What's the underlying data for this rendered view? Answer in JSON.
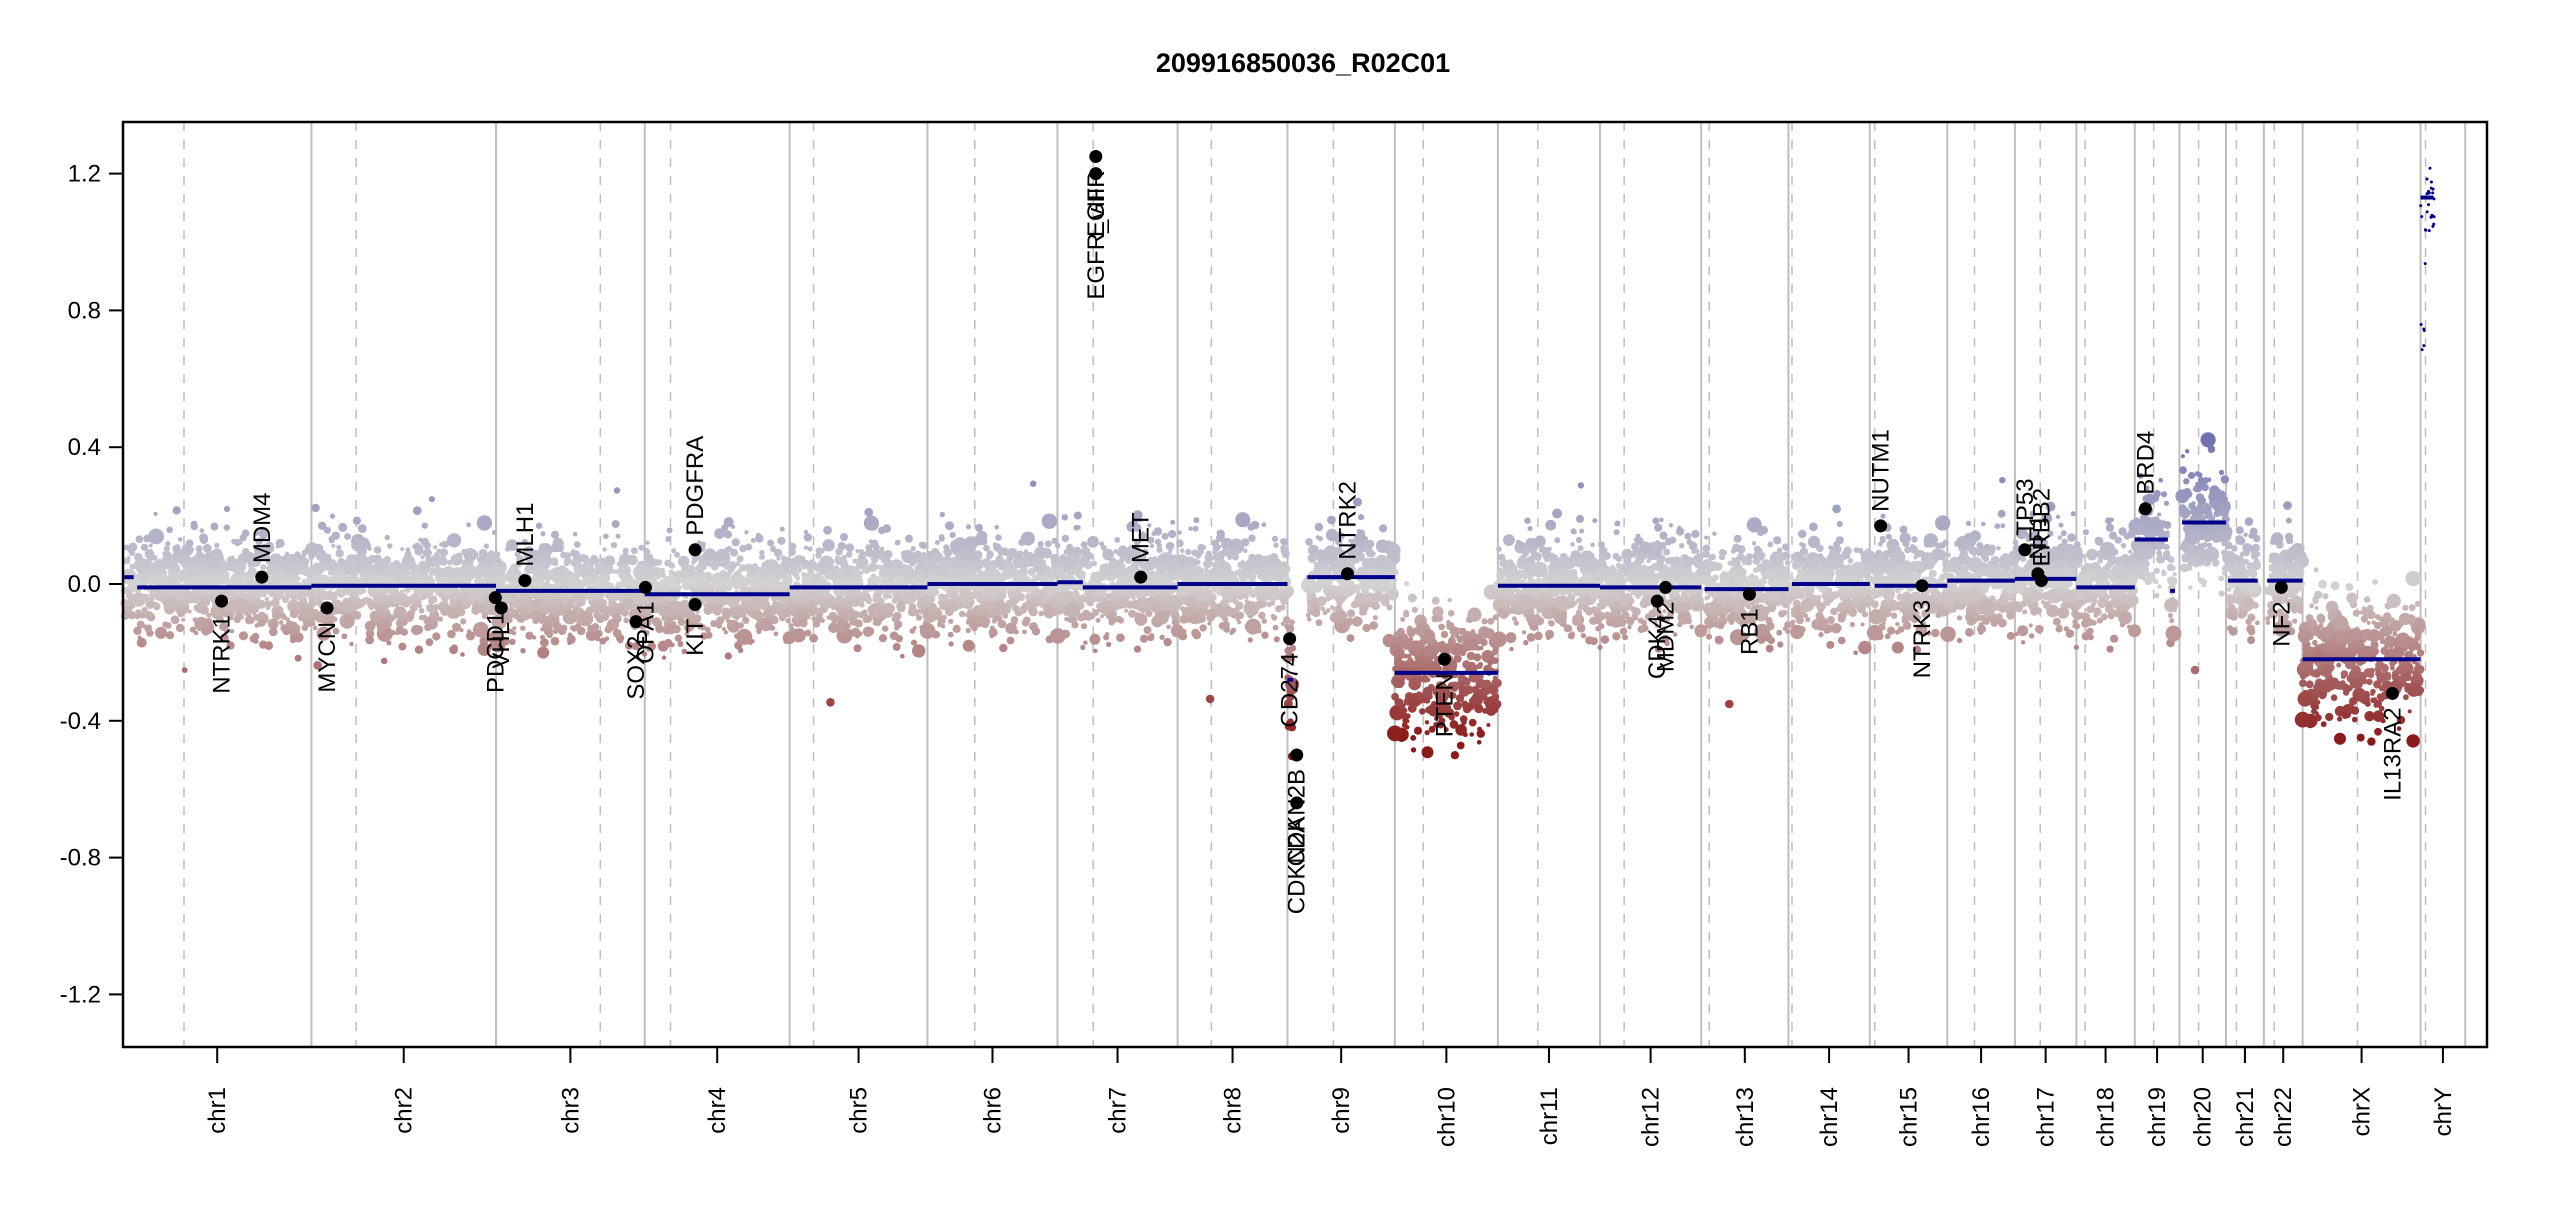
{
  "chart_data": {
    "type": "scatter",
    "title": "209916850036_R02C01",
    "xlabel": "",
    "ylabel": "",
    "ylim": [
      -1.36,
      1.36
    ],
    "yticks": [
      1.2,
      0.8,
      0.4,
      0.0,
      -0.4,
      -0.8,
      -1.2
    ],
    "ytick_labels": [
      "1.2",
      "0.8",
      "0.4",
      "0.0",
      "-0.4",
      "-0.8",
      "-1.2"
    ],
    "grid": false,
    "legend": "none",
    "x_units": "relative genome position (0-1)",
    "chromosomes": [
      {
        "name": "chr1",
        "start": 0.0,
        "end": 0.0797,
        "centromere": 0.0258
      },
      {
        "name": "chr2",
        "start": 0.0797,
        "end": 0.1578,
        "centromere": 0.0986
      },
      {
        "name": "chr3",
        "start": 0.1578,
        "end": 0.2207,
        "centromere": 0.2019
      },
      {
        "name": "chr4",
        "start": 0.2207,
        "end": 0.282,
        "centromere": 0.2316
      },
      {
        "name": "chr5",
        "start": 0.282,
        "end": 0.3403,
        "centromere": 0.2921
      },
      {
        "name": "chr6",
        "start": 0.3403,
        "end": 0.3953,
        "centromere": 0.3603
      },
      {
        "name": "chr7",
        "start": 0.3953,
        "end": 0.4461,
        "centromere": 0.4104
      },
      {
        "name": "chr8",
        "start": 0.4461,
        "end": 0.4926,
        "centromere": 0.4604
      },
      {
        "name": "chr9",
        "start": 0.4926,
        "end": 0.538,
        "centromere": 0.512
      },
      {
        "name": "chr10",
        "start": 0.538,
        "end": 0.5816,
        "centromere": 0.55
      },
      {
        "name": "chr11",
        "start": 0.5816,
        "end": 0.6248,
        "centromere": 0.5985
      },
      {
        "name": "chr12",
        "start": 0.6248,
        "end": 0.6676,
        "centromere": 0.635
      },
      {
        "name": "chr13",
        "start": 0.6676,
        "end": 0.7045,
        "centromere": 0.671
      },
      {
        "name": "chr14",
        "start": 0.7045,
        "end": 0.7389,
        "centromere": 0.706
      },
      {
        "name": "chr15",
        "start": 0.7389,
        "end": 0.7717,
        "centromere": 0.741
      },
      {
        "name": "chr16",
        "start": 0.7717,
        "end": 0.8003,
        "centromere": 0.7832
      },
      {
        "name": "chr17",
        "start": 0.8003,
        "end": 0.8263,
        "centromere": 0.811
      },
      {
        "name": "chr18",
        "start": 0.8263,
        "end": 0.851,
        "centromere": 0.83
      },
      {
        "name": "chr19",
        "start": 0.851,
        "end": 0.8699,
        "centromere": 0.859
      },
      {
        "name": "chr20",
        "start": 0.8699,
        "end": 0.8896,
        "centromere": 0.878
      },
      {
        "name": "chr21",
        "start": 0.8896,
        "end": 0.9056,
        "centromere": 0.894
      },
      {
        "name": "chr22",
        "start": 0.9056,
        "end": 0.922,
        "centromere": 0.91
      },
      {
        "name": "chrX",
        "start": 0.922,
        "end": 0.9719,
        "centromere": 0.9452
      },
      {
        "name": "chrY",
        "start": 0.9719,
        "end": 0.9908,
        "centromere": 0.974
      }
    ],
    "segments": [
      {
        "chrom": "chr1",
        "x0": 0.0005,
        "x1": 0.0045,
        "mean": 0.02
      },
      {
        "chrom": "chr1",
        "x0": 0.006,
        "x1": 0.0797,
        "mean": -0.01
      },
      {
        "chrom": "chr2",
        "x0": 0.0797,
        "x1": 0.1578,
        "mean": -0.005
      },
      {
        "chrom": "chr3",
        "x0": 0.1578,
        "x1": 0.2207,
        "mean": -0.02
      },
      {
        "chrom": "chr4",
        "x0": 0.2207,
        "x1": 0.282,
        "mean": -0.03
      },
      {
        "chrom": "chr5",
        "x0": 0.282,
        "x1": 0.3403,
        "mean": -0.01
      },
      {
        "chrom": "chr6",
        "x0": 0.3403,
        "x1": 0.3953,
        "mean": 0.0
      },
      {
        "chrom": "chr7",
        "x0": 0.3953,
        "x1": 0.406,
        "mean": 0.005
      },
      {
        "chrom": "chr7",
        "x0": 0.406,
        "x1": 0.4461,
        "mean": -0.01
      },
      {
        "chrom": "chr8",
        "x0": 0.4461,
        "x1": 0.4926,
        "mean": 0.0
      },
      {
        "chrom": "chr9",
        "x0": 0.4926,
        "x1": 0.495,
        "mean": -0.28
      },
      {
        "chrom": "chr9",
        "x0": 0.501,
        "x1": 0.538,
        "mean": 0.02
      },
      {
        "chrom": "chr10",
        "x0": 0.538,
        "x1": 0.5816,
        "mean": -0.26
      },
      {
        "chrom": "chr11",
        "x0": 0.5816,
        "x1": 0.6248,
        "mean": -0.005
      },
      {
        "chrom": "chr12",
        "x0": 0.6248,
        "x1": 0.6676,
        "mean": -0.01
      },
      {
        "chrom": "chr13",
        "x0": 0.669,
        "x1": 0.7045,
        "mean": -0.015
      },
      {
        "chrom": "chr14",
        "x0": 0.706,
        "x1": 0.7389,
        "mean": 0.0
      },
      {
        "chrom": "chr15",
        "x0": 0.741,
        "x1": 0.7717,
        "mean": -0.005
      },
      {
        "chrom": "chr16",
        "x0": 0.7717,
        "x1": 0.8003,
        "mean": 0.01
      },
      {
        "chrom": "chr17",
        "x0": 0.8003,
        "x1": 0.8263,
        "mean": 0.015
      },
      {
        "chrom": "chr18",
        "x0": 0.8263,
        "x1": 0.851,
        "mean": -0.01
      },
      {
        "chrom": "chr19",
        "x0": 0.851,
        "x1": 0.865,
        "mean": 0.13
      },
      {
        "chrom": "chr19",
        "x0": 0.866,
        "x1": 0.868,
        "mean": -0.02
      },
      {
        "chrom": "chr20",
        "x0": 0.871,
        "x1": 0.8896,
        "mean": 0.18
      },
      {
        "chrom": "chr21",
        "x0": 0.8905,
        "x1": 0.903,
        "mean": 0.01
      },
      {
        "chrom": "chr22",
        "x0": 0.907,
        "x1": 0.922,
        "mean": 0.01
      },
      {
        "chrom": "chrX",
        "x0": 0.922,
        "x1": 0.9719,
        "mean": -0.22
      },
      {
        "chrom": "chrY",
        "x0": 0.9719,
        "x1": 0.977,
        "mean": 1.13
      }
    ],
    "genes": [
      {
        "name": "NTRK1",
        "x": 0.0417,
        "y": -0.05,
        "label_side": "below"
      },
      {
        "name": "MDM4",
        "x": 0.0587,
        "y": 0.02,
        "label_side": "above"
      },
      {
        "name": "MYCN",
        "x": 0.0863,
        "y": -0.07,
        "label_side": "below"
      },
      {
        "name": "PDCD1",
        "x": 0.1575,
        "y": -0.04,
        "label_side": "below"
      },
      {
        "name": "VHL",
        "x": 0.16,
        "y": -0.07,
        "label_side": "below"
      },
      {
        "name": "MLH1",
        "x": 0.17,
        "y": 0.01,
        "label_side": "above"
      },
      {
        "name": "SOX2",
        "x": 0.217,
        "y": -0.11,
        "label_side": "below"
      },
      {
        "name": "OPA1",
        "x": 0.221,
        "y": -0.01,
        "label_side": "below"
      },
      {
        "name": "PDGFRA",
        "x": 0.242,
        "y": 0.1,
        "label_side": "above"
      },
      {
        "name": "KIT",
        "x": 0.242,
        "y": -0.06,
        "label_side": "below"
      },
      {
        "name": "EGFR",
        "x": 0.4115,
        "y": 1.25,
        "label_side": "below"
      },
      {
        "name": "EGFR_vIII",
        "x": 0.4115,
        "y": 1.2,
        "label_side": "below"
      },
      {
        "name": "MET",
        "x": 0.4305,
        "y": 0.02,
        "label_side": "above"
      },
      {
        "name": "CD274",
        "x": 0.4935,
        "y": -0.16,
        "label_side": "below"
      },
      {
        "name": "CDKN2A",
        "x": 0.4965,
        "y": -0.64,
        "label_side": "below"
      },
      {
        "name": "CDKN2B",
        "x": 0.4965,
        "y": -0.5,
        "label_side": "below"
      },
      {
        "name": "NTRK2",
        "x": 0.518,
        "y": 0.03,
        "label_side": "above"
      },
      {
        "name": "PTEN",
        "x": 0.559,
        "y": -0.22,
        "label_side": "below"
      },
      {
        "name": "CDK4",
        "x": 0.649,
        "y": -0.05,
        "label_side": "below"
      },
      {
        "name": "MDM2",
        "x": 0.6525,
        "y": -0.01,
        "label_side": "below"
      },
      {
        "name": "RB1",
        "x": 0.688,
        "y": -0.03,
        "label_side": "below"
      },
      {
        "name": "NUTM1",
        "x": 0.7435,
        "y": 0.17,
        "label_side": "above"
      },
      {
        "name": "NTRK3",
        "x": 0.761,
        "y": -0.005,
        "label_side": "below"
      },
      {
        "name": "TP53",
        "x": 0.8045,
        "y": 0.1,
        "label_side": "above"
      },
      {
        "name": "NF1",
        "x": 0.81,
        "y": 0.03,
        "label_side": "above"
      },
      {
        "name": "ERBB2",
        "x": 0.8115,
        "y": 0.01,
        "label_side": "above"
      },
      {
        "name": "BRD4",
        "x": 0.8555,
        "y": 0.22,
        "label_side": "above"
      },
      {
        "name": "NF2",
        "x": 0.913,
        "y": -0.01,
        "label_side": "below"
      },
      {
        "name": "IL13RA2",
        "x": 0.96,
        "y": -0.32,
        "label_side": "below"
      }
    ],
    "colors": {
      "segment": "#00008b",
      "gain": "#6b6bb0",
      "neutral": "#d3d3d3",
      "loss": "#8b1a1a",
      "chrom_boundary": "#bebebe",
      "centromere": "#bebebe",
      "gene_point": "#000000"
    }
  }
}
